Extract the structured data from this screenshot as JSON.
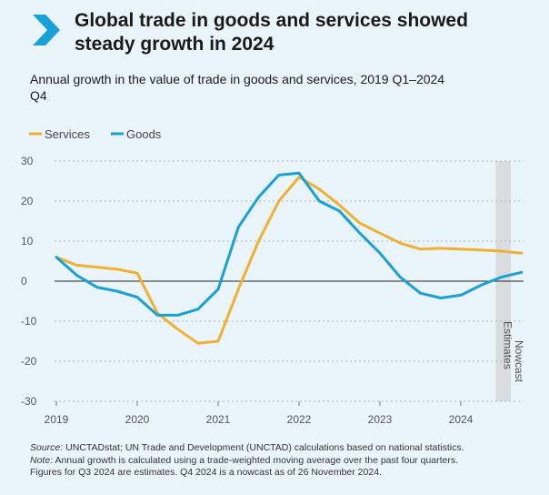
{
  "header": {
    "title_line1": "Global trade in goods and services showed",
    "title_line2": "steady growth in 2024",
    "subtitle_line1": "Annual growth in the value of trade in goods and services, 2019 Q1–2024",
    "subtitle_line2": "Q4"
  },
  "footer": {
    "source_label": "Source:",
    "source_text": " UNCTADstat; UN Trade and Development (UNCTAD) calculations based on national statistics.",
    "note_label": "Note:",
    "note_text": " Annual growth is calculated using a trade-weighted moving average over the past four quarters.",
    "note_text2": "Figures for Q3 2024 are estimates. Q4 2024 is a nowcast as of 26 November 2024."
  },
  "colors": {
    "services": "#f0b030",
    "goods": "#1aa0d8",
    "accent": "#1aa0d8",
    "shade": "#d9dde0"
  },
  "chart_data": {
    "type": "line",
    "x": [
      "2019 Q1",
      "2019 Q2",
      "2019 Q3",
      "2019 Q4",
      "2020 Q1",
      "2020 Q2",
      "2020 Q3",
      "2020 Q4",
      "2021 Q1",
      "2021 Q2",
      "2021 Q3",
      "2021 Q4",
      "2022 Q1",
      "2022 Q2",
      "2022 Q3",
      "2022 Q4",
      "2023 Q1",
      "2023 Q2",
      "2023 Q3",
      "2023 Q4",
      "2024 Q1",
      "2024 Q2",
      "2024 Q3",
      "2024 Q4"
    ],
    "series": [
      {
        "name": "Services",
        "values": [
          6,
          4,
          3.5,
          3,
          2,
          -8,
          -12,
          -15.5,
          -15,
          -2,
          10,
          20,
          26,
          23,
          19,
          14.5,
          12,
          9.5,
          8,
          8.2,
          8,
          7.8,
          7.5,
          7
        ]
      },
      {
        "name": "Goods",
        "values": [
          6,
          1.5,
          -1.5,
          -2.5,
          -4,
          -8.5,
          -8.5,
          -7,
          -2,
          13.5,
          21,
          26.5,
          27,
          20,
          17.5,
          12,
          7,
          1,
          -3,
          -4.2,
          -3.5,
          -1,
          1,
          2.2
        ]
      }
    ],
    "x_tick_labels": [
      "2019",
      "2020",
      "2021",
      "2022",
      "2023",
      "2024"
    ],
    "y_ticks": [
      30,
      20,
      10,
      0,
      -10,
      -20,
      -30
    ],
    "ylim": [
      -30,
      30
    ],
    "estimates_label": "Estimates",
    "nowcast_label": "Nowcast",
    "legend_placement": "top-left",
    "grid": true
  }
}
